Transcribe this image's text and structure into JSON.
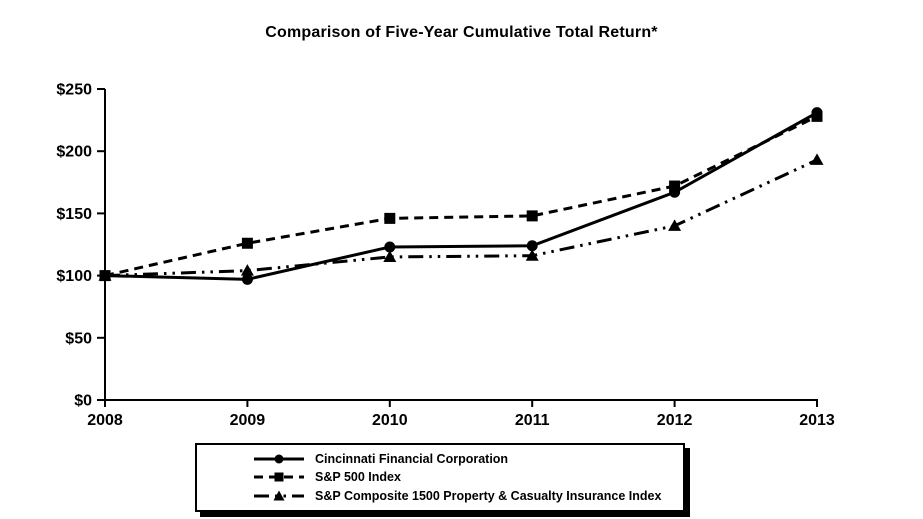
{
  "chart_data": {
    "type": "line",
    "title": "Comparison of Five-Year Cumulative Total Return*",
    "categories": [
      "2008",
      "2009",
      "2010",
      "2011",
      "2012",
      "2013"
    ],
    "series": [
      {
        "name": "Cincinnati Financial Corporation",
        "values": [
          100,
          97,
          123,
          124,
          167,
          231
        ],
        "marker": "circle",
        "dash": "solid"
      },
      {
        "name": "S&P 500 Index",
        "values": [
          100,
          126,
          146,
          148,
          172,
          228
        ],
        "marker": "square",
        "dash": "dashed"
      },
      {
        "name": "S&P Composite 1500 Property & Casualty Insurance Index",
        "values": [
          100,
          104,
          115,
          116,
          140,
          193
        ],
        "marker": "triangle",
        "dash": "dash-dot-dot"
      }
    ],
    "xlabel": "",
    "ylabel": "",
    "y_ticks": [
      "$0",
      "$50",
      "$100",
      "$150",
      "$200",
      "$250"
    ],
    "y_tick_values": [
      0,
      50,
      100,
      150,
      200,
      250
    ],
    "ylim": [
      0,
      250
    ],
    "grid": false,
    "legend_position": "bottom",
    "line_color": "#000000",
    "background_color": "#ffffff"
  }
}
